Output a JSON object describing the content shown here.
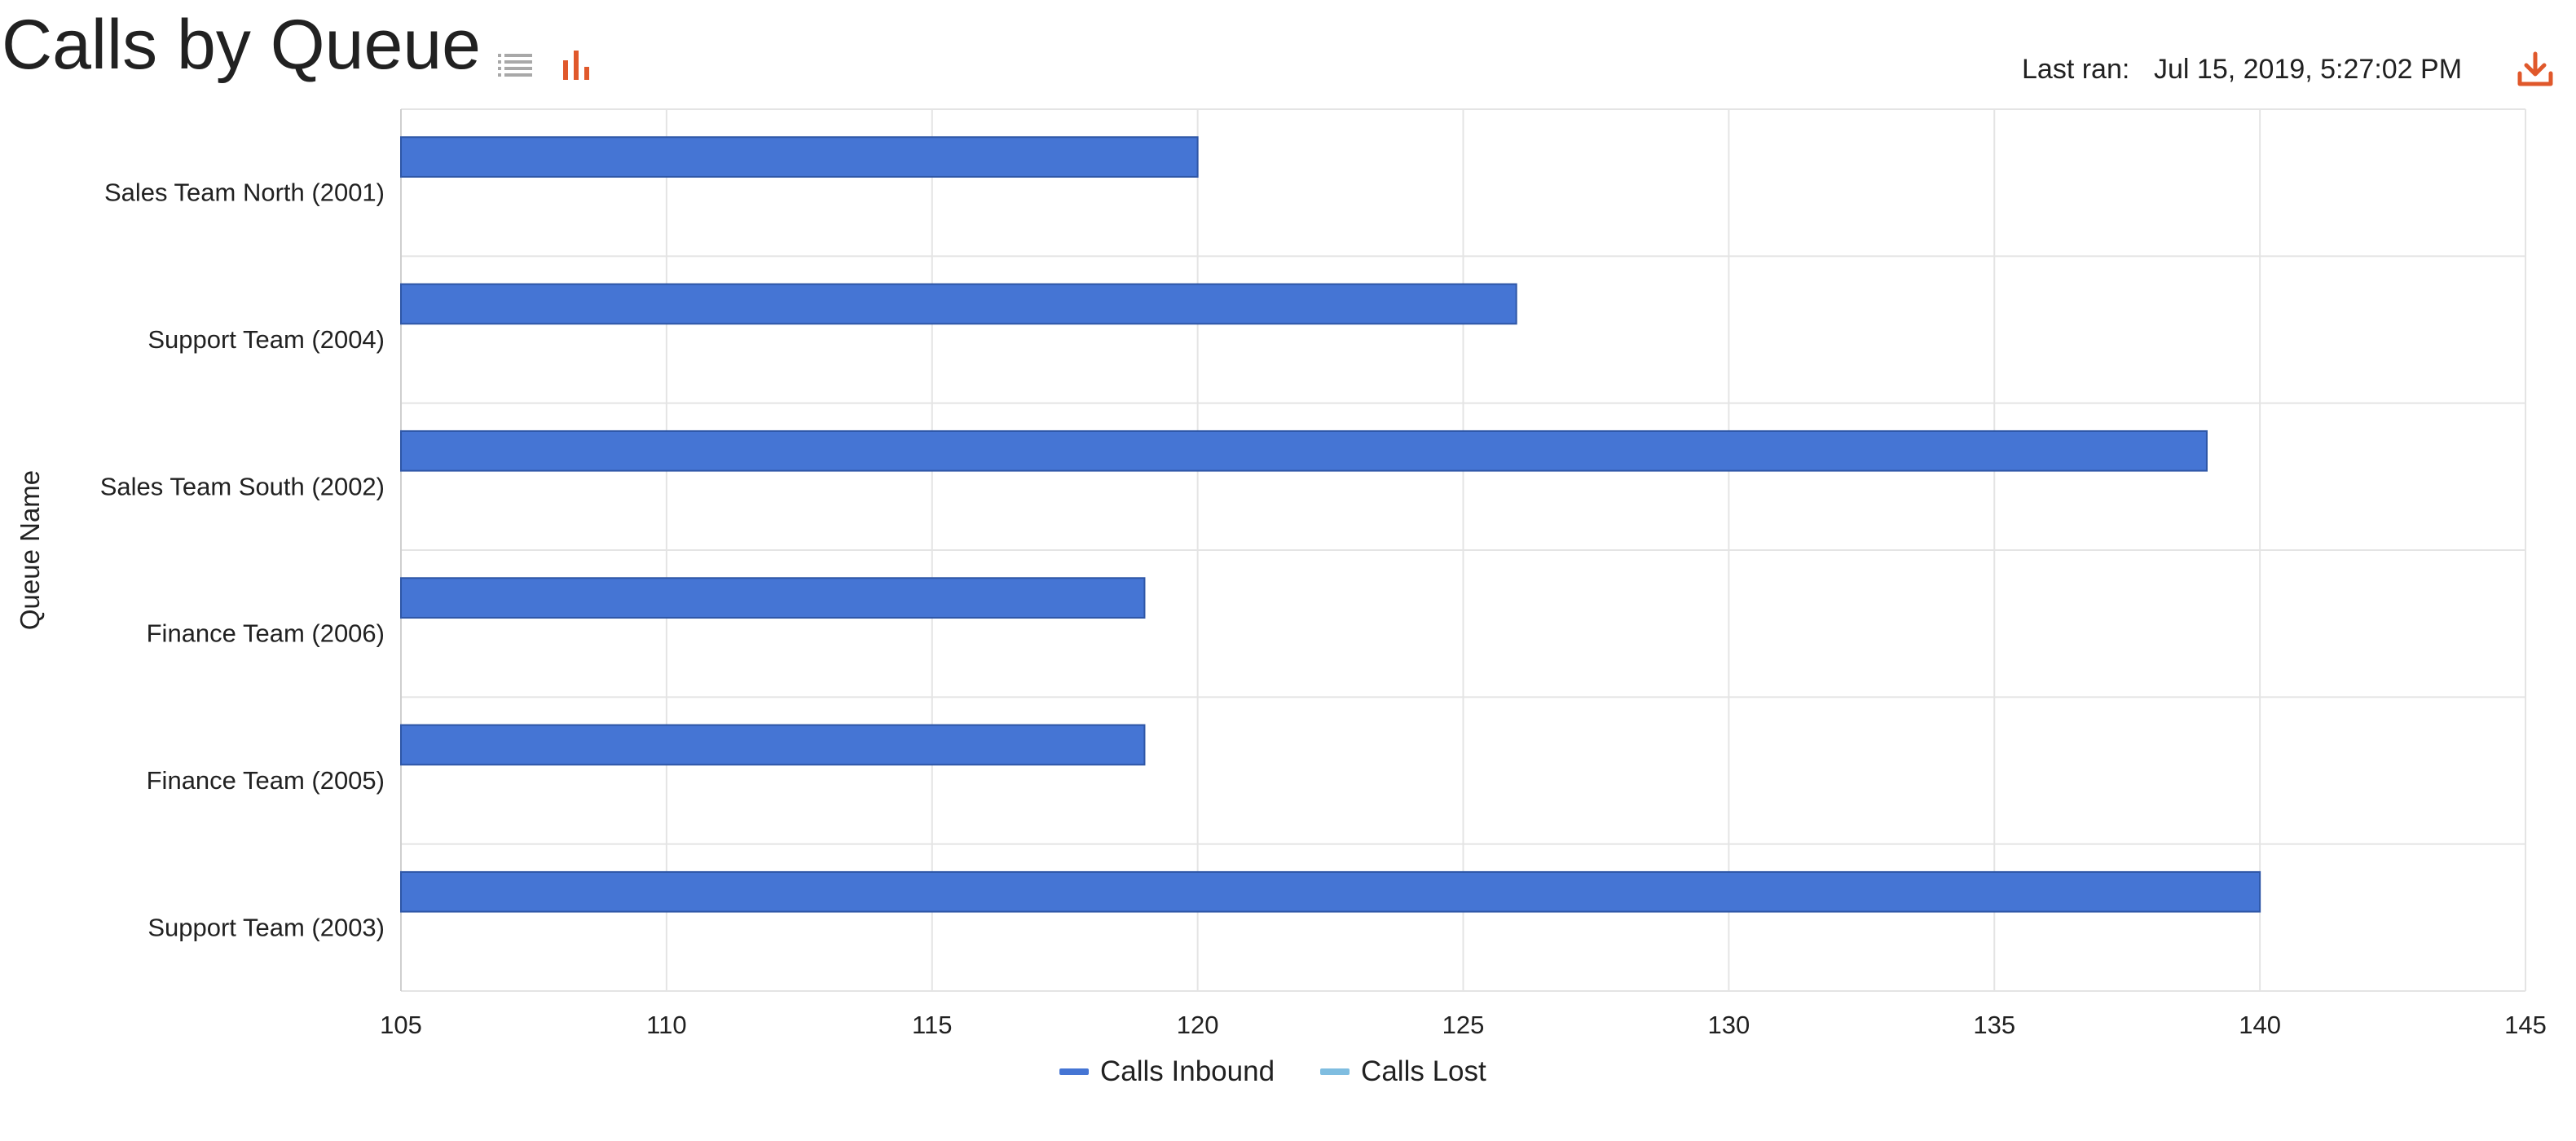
{
  "header": {
    "title": "Calls by Queue",
    "last_ran_label": "Last ran:",
    "last_ran_value": "Jul 15, 2019, 5:27:02 PM",
    "view_icons": [
      "list-icon",
      "bar-chart-icon"
    ],
    "download_icon": "download-icon"
  },
  "colors": {
    "accent": "#e0582b",
    "bar_fill": "#4575d4",
    "bar_stroke": "#2e56a6",
    "calls_inbound": "#4575d4",
    "calls_lost": "#7fbde0",
    "grid": "#e4e4e4",
    "inactive_icon": "#a8a8a8"
  },
  "chart_data": {
    "type": "bar",
    "orientation": "horizontal",
    "title": "",
    "ylabel": "Queue Name",
    "xlabel": "",
    "categories": [
      "Sales Team North (2001)",
      "Support Team (2004)",
      "Sales Team South (2002)",
      "Finance Team (2006)",
      "Finance Team (2005)",
      "Support Team (2003)"
    ],
    "series": [
      {
        "name": "Calls Inbound",
        "values": [
          120,
          126,
          139,
          119,
          119,
          140
        ]
      },
      {
        "name": "Calls Lost",
        "values": [
          null,
          null,
          null,
          null,
          null,
          null
        ]
      }
    ],
    "xlim": [
      105,
      145
    ],
    "xticks": [
      105,
      110,
      115,
      120,
      125,
      130,
      135,
      140,
      145
    ],
    "grid": true,
    "legend_position": "bottom"
  }
}
